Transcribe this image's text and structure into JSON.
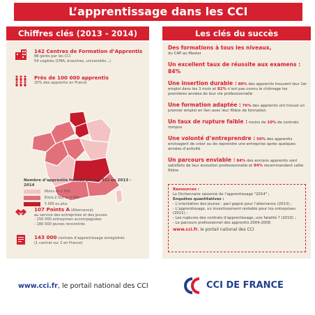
{
  "title": "L’apprentissage dans les CCI",
  "left": {
    "heading": "Chiffres clés (2013 - 2014)",
    "stat1": {
      "big": "142 Centres de Formation d’Apprentis",
      "line1": "88 gérés par les CCI",
      "line2": "54 cogérés (CMA, branches, universités...)"
    },
    "stat2": {
      "big": "Près de 100 000 apprentis",
      "line1": "20% des apprentis en France"
    },
    "legend": {
      "title": "Nombre d’apprentis formés par les CCI en 2013 - 2014",
      "items": [
        {
          "label": "Moins de 2 500",
          "color": "#f3c3c4"
        },
        {
          "label": "Entre 2 500 et 4 999",
          "color": "#e2707a"
        },
        {
          "label": "5 000 ou plus",
          "color": "#c41a2c"
        }
      ]
    },
    "stat3": {
      "big": "107 Points A",
      "small": " (Alternance)",
      "line1": "au service des entreprises et des jeunes",
      "line2": "- 150 000 entreprises accompagnées",
      "line3": "- 180 000 jeunes rencontrés"
    },
    "stat4": {
      "big": "143 000",
      "rest": " contrats d’apprentissage enregistrés",
      "line2": "(1 contrat sur 2 en France)"
    }
  },
  "right": {
    "heading": "Les clés du succès",
    "k1": {
      "h": "Des formations à tous les niveaux,",
      "t": "du CAP au Master"
    },
    "k2": {
      "h": "Un excellent taux de réussite aux examens : 84%"
    },
    "k3": {
      "h": "Une insertion durable :",
      "n1": "80%",
      "t1": " des apprentis trouvent leur 1er emploi dans les 3 mois et ",
      "n2": "82%",
      "t2": " n’ont pas connu le chômage les premières années de leur vie professionnelle"
    },
    "k4": {
      "h": "Une formation adaptée :",
      "n": "76%",
      "t": " des apprentis ont trouvé un premier emploi en lien avec leur filière de formation"
    },
    "k5": {
      "h": "Un taux de rupture faible :",
      "t1": " moins de ",
      "n": "10%",
      "t2": " de contrats rompus"
    },
    "k6": {
      "h": "Une volonté d’entreprendre :",
      "n": "50%",
      "t": " des apprentis envisagent de créer ou de reprendre une entreprise après quelques années d’activité"
    },
    "k7": {
      "h": "Un parcours enviable :",
      "n1": "84%",
      "t1": " des anciens apprentis sont satisfaits de leur évolution professionnelle et ",
      "n2": "94%",
      "t2": " recommandent cette filière"
    },
    "resources": {
      "h": "Ressources :",
      "l1": "Le Dictionnaire raisonné de l’apprentissage \"2014\" ;",
      "h2": "Enquêtes quantitatives :",
      "l2": "- L’orientation des jeunes : pari gagné pour l’alternance (2013) ;",
      "l3": "- L’apprentissage, un investissement rentable pour les entreprises (2011) ;",
      "l4": "- Les ruptures des contrats  d’apprentissage, une fatalité ? (2010) ;",
      "l5": "- Le parcours professionnel des apprentis 2004-2008.",
      "url": "www.cci.fr",
      "url_rest": ", le portail national des CCI"
    }
  },
  "footer": {
    "url": "www.cci.fr",
    "rest": ", le portail national des CCI",
    "logo": "CCI DE FRANCE"
  }
}
